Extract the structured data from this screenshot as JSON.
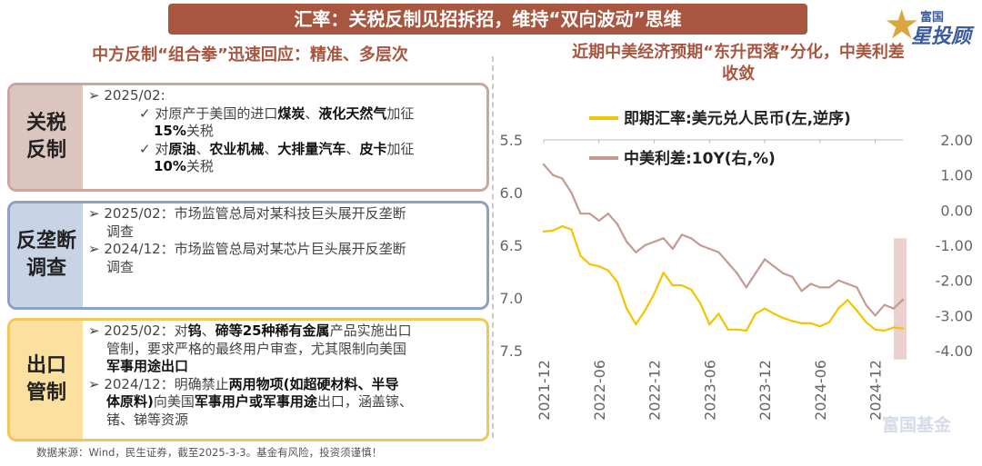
{
  "banner": "汇率：关税反制见招拆招，维持“双向波动”思维",
  "logo": {
    "line1": "富国",
    "line2": "星投顾"
  },
  "left_title": "中方反制“组合拳”迅速回应：精准、多层次",
  "right_title_1": "近期中美经济预期“东升西落”分化，中美利差",
  "right_title_2": "收敛",
  "rows": [
    {
      "label_1": "关税",
      "label_2": "反制",
      "lines": [
        "➢ 2025/02:",
        "✓ 对原产于美国的进口<b>煤炭</b>、<b>液化天然气</b>加征",
        "<b>15%</b>关税",
        "✓ 对<b>原油</b>、<b>农业机械</b>、<b>大排量汽车</b>、<b>皮卡</b>加征",
        "<b>10%</b>关税"
      ]
    },
    {
      "label_1": "反垄断",
      "label_2": "调查",
      "lines": [
        "➢ 2025/02：市场监管总局对某科技巨头展开反垄断",
        "调查",
        "➢ 2024/12：市场监管总局对某芯片巨头展开反垄断",
        "调查"
      ]
    },
    {
      "label_1": "出口",
      "label_2": "管制",
      "lines": [
        "➢ 2025/02：对<b>钨</b>、<b>碲等25种稀有金属</b>产品实施出口",
        "管制，要求严格的最终用户审查，尤其限制向美国",
        "<b>军事用途出口</b>",
        "➢ 2024/12：明确禁止<b>两用物项(如超硬材料、半导</b>",
        "<b>体原料)</b>向美国<b>军事用户或军事用途</b>出口，涵盖镓、",
        "锗、锑等资源"
      ]
    }
  ],
  "source": "数据来源：Wind，民生证券，截至2025-3-3。基金有风险，投资须谨慎！",
  "watermark": "富国基金",
  "colors": {
    "fx": "#f5c400",
    "spread": "#c49a93",
    "accent": "#a8563f"
  },
  "chart_data": {
    "type": "line",
    "x_ticks": [
      "2021-12",
      "2022-06",
      "2022-12",
      "2023-06",
      "2023-12",
      "2024-06",
      "2024-12"
    ],
    "x_range": [
      "2021-12",
      "2025-03"
    ],
    "y_left": {
      "ticks": [
        "5.5",
        "6.0",
        "6.5",
        "7.0",
        "7.5"
      ],
      "range": [
        5.5,
        7.5
      ],
      "inverted": true
    },
    "y_right": {
      "ticks": [
        "2.00",
        "1.00",
        "0.00",
        "-1.00",
        "-2.00",
        "-3.00",
        "-4.00"
      ],
      "range": [
        -4.0,
        2.0
      ]
    },
    "series": [
      {
        "name": "即期汇率:美元兑人民币(左,逆序)",
        "axis": "left",
        "color": "#f5c400",
        "x": [
          "2021-12",
          "2022-01",
          "2022-02",
          "2022-03",
          "2022-04",
          "2022-05",
          "2022-06",
          "2022-07",
          "2022-08",
          "2022-09",
          "2022-10",
          "2022-11",
          "2022-12",
          "2023-01",
          "2023-02",
          "2023-03",
          "2023-04",
          "2023-05",
          "2023-06",
          "2023-07",
          "2023-08",
          "2023-09",
          "2023-10",
          "2023-11",
          "2023-12",
          "2024-01",
          "2024-02",
          "2024-03",
          "2024-04",
          "2024-05",
          "2024-06",
          "2024-07",
          "2024-08",
          "2024-09",
          "2024-10",
          "2024-11",
          "2024-12",
          "2025-01",
          "2025-02",
          "2025-03"
        ],
        "values": [
          6.37,
          6.36,
          6.32,
          6.35,
          6.6,
          6.68,
          6.7,
          6.74,
          6.85,
          7.1,
          7.25,
          7.12,
          6.96,
          6.76,
          6.88,
          6.88,
          6.92,
          7.05,
          7.25,
          7.15,
          7.3,
          7.3,
          7.31,
          7.15,
          7.1,
          7.15,
          7.19,
          7.22,
          7.24,
          7.24,
          7.27,
          7.23,
          7.1,
          7.02,
          7.12,
          7.23,
          7.3,
          7.31,
          7.28,
          7.29
        ]
      },
      {
        "name": "中美利差:10Y(右,%)",
        "axis": "right",
        "color": "#c49a93",
        "x": [
          "2021-12",
          "2022-01",
          "2022-02",
          "2022-03",
          "2022-04",
          "2022-05",
          "2022-06",
          "2022-07",
          "2022-08",
          "2022-09",
          "2022-10",
          "2022-11",
          "2022-12",
          "2023-01",
          "2023-02",
          "2023-03",
          "2023-04",
          "2023-05",
          "2023-06",
          "2023-07",
          "2023-08",
          "2023-09",
          "2023-10",
          "2023-11",
          "2023-12",
          "2024-01",
          "2024-02",
          "2024-03",
          "2024-04",
          "2024-05",
          "2024-06",
          "2024-07",
          "2024-08",
          "2024-09",
          "2024-10",
          "2024-11",
          "2024-12",
          "2025-01",
          "2025-02",
          "2025-03"
        ],
        "values": [
          1.3,
          1.0,
          0.9,
          0.5,
          -0.1,
          -0.1,
          -0.3,
          -0.1,
          -0.4,
          -0.9,
          -1.2,
          -1.0,
          -0.9,
          -0.8,
          -1.1,
          -0.7,
          -0.8,
          -1.0,
          -1.1,
          -1.2,
          -1.5,
          -1.8,
          -2.2,
          -1.8,
          -1.4,
          -1.6,
          -1.8,
          -1.9,
          -2.3,
          -2.1,
          -2.2,
          -2.2,
          -2.0,
          -2.1,
          -2.2,
          -2.7,
          -3.0,
          -2.7,
          -2.8,
          -2.55
        ]
      }
    ]
  }
}
